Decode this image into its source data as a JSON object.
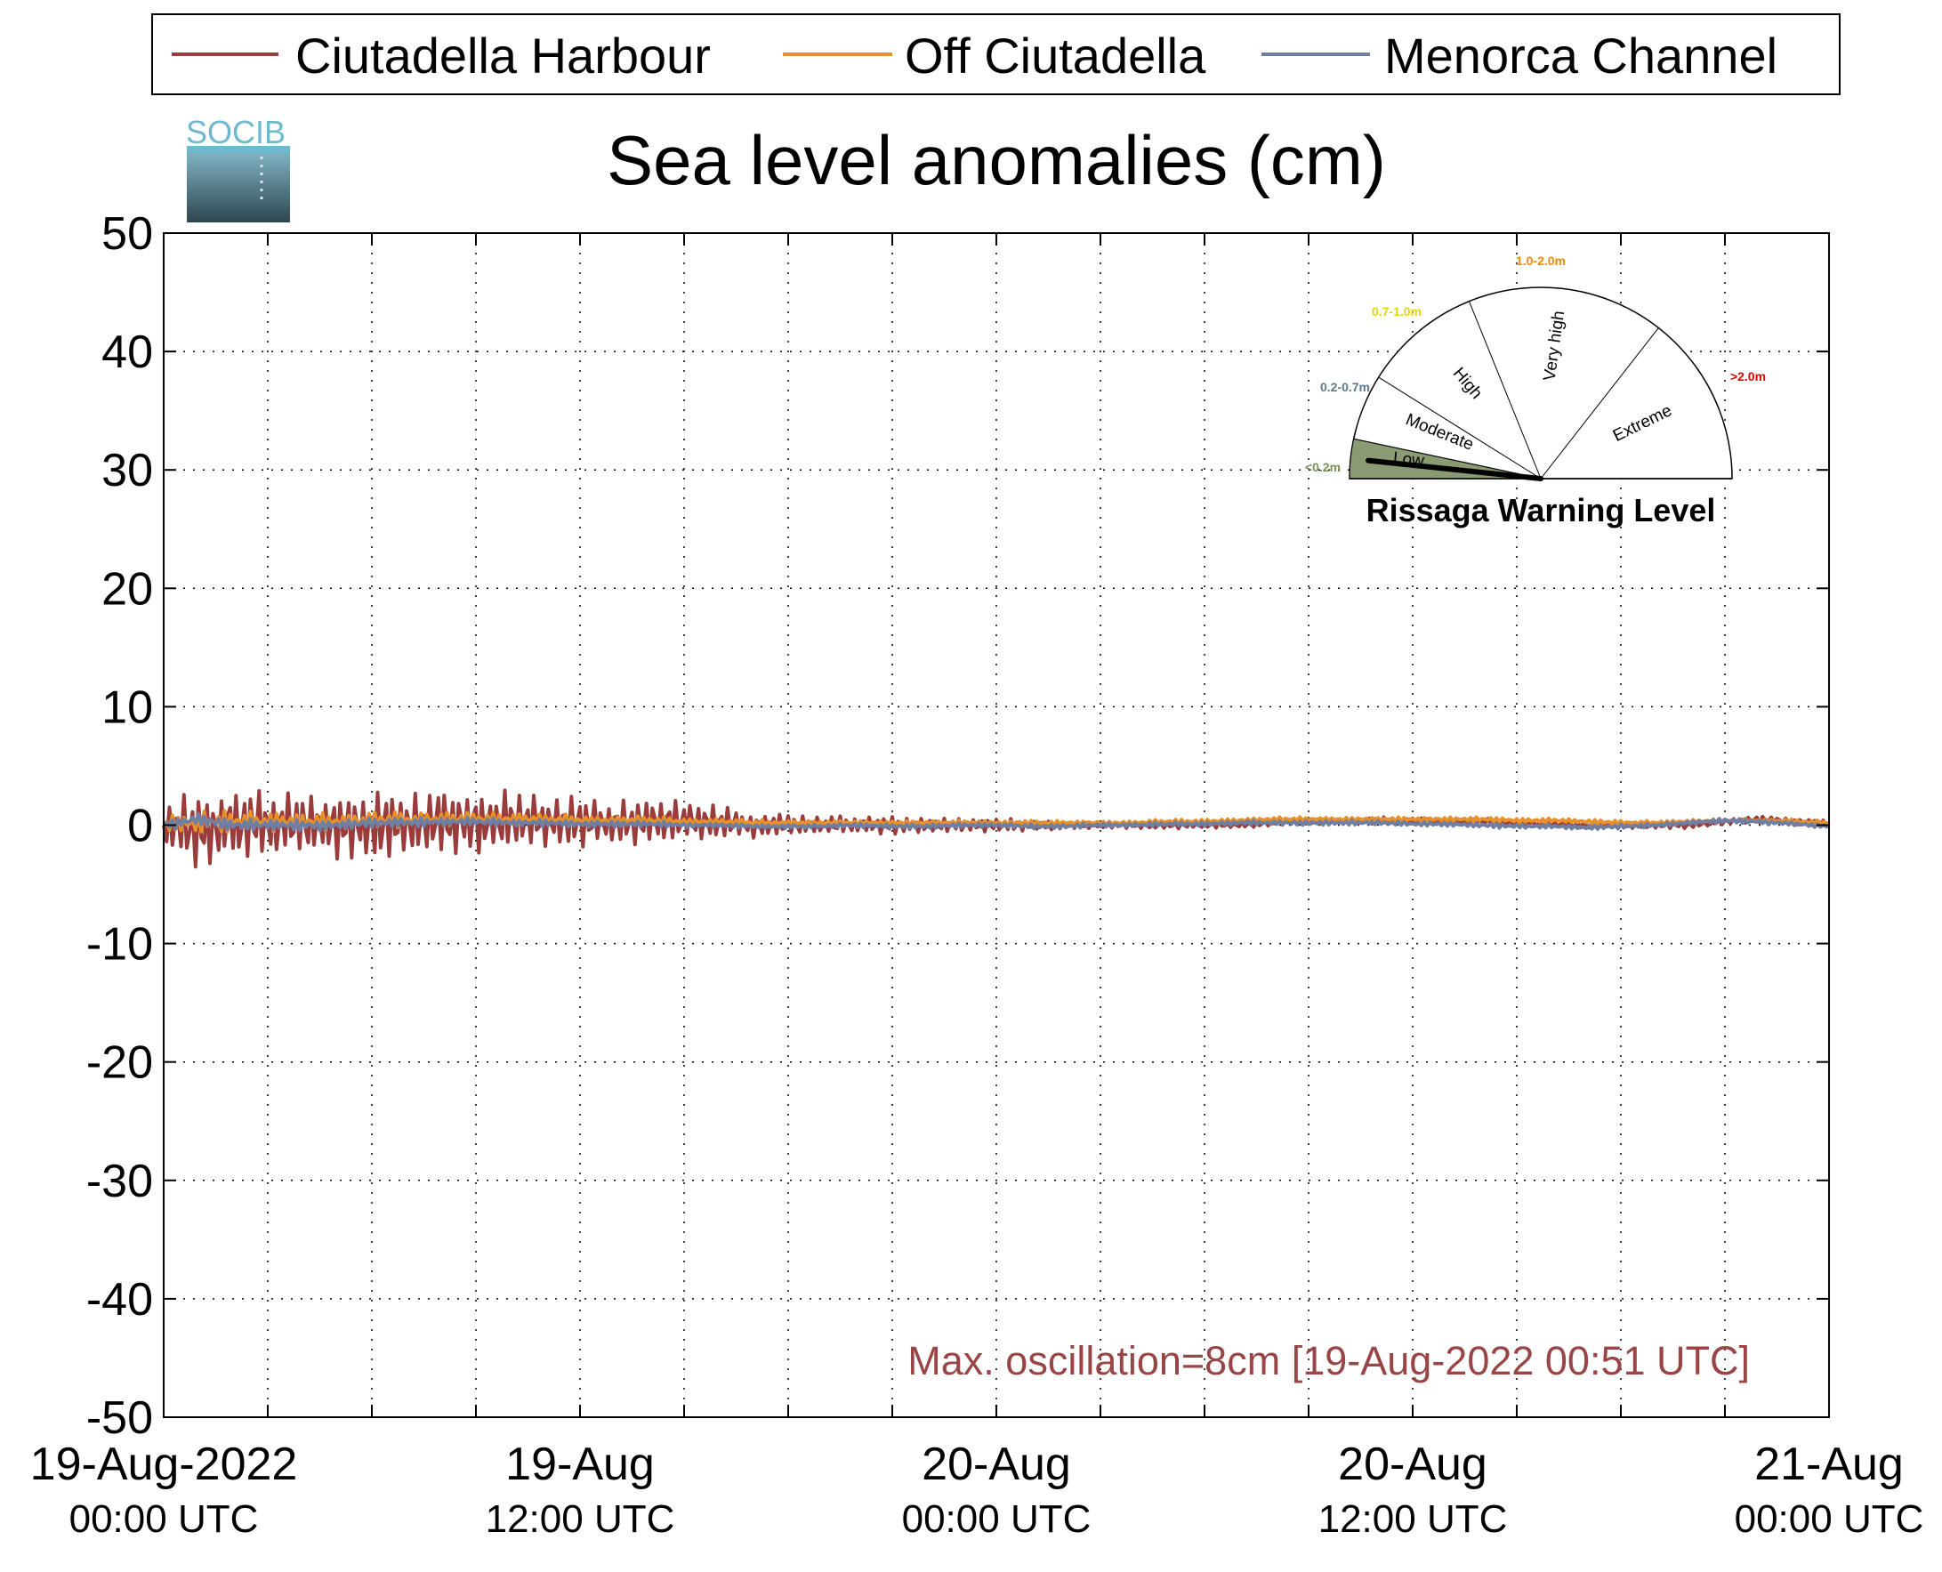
{
  "colors": {
    "ciutadella_harbour": "#9a3c3c",
    "off_ciutadella": "#e8902a",
    "menorca_channel": "#6f7fa3",
    "annotation": "#9a4545",
    "low_fill": "#8a9a72",
    "lbl_low": "#7a8f5a",
    "lbl_moderate": "#5a7a8a",
    "lbl_high": "#e6d600",
    "lbl_very_high": "#f08a00",
    "lbl_extreme": "#e00000"
  },
  "logo": {
    "text": "SOCIB"
  },
  "chart_data": {
    "type": "line",
    "title": "Sea level anomalies (cm)",
    "xlabel": "",
    "ylabel": "",
    "ylim": [
      -50,
      50
    ],
    "yticks": [
      50,
      40,
      30,
      20,
      10,
      0,
      -10,
      -20,
      -30,
      -40,
      -50
    ],
    "xlim": [
      "2022-08-19 00:00",
      "2022-08-21 00:00"
    ],
    "xticks": [
      {
        "line1": "19-Aug-2022",
        "line2": "00:00 UTC"
      },
      {
        "line1": "19-Aug",
        "line2": "12:00 UTC"
      },
      {
        "line1": "20-Aug",
        "line2": "00:00 UTC"
      },
      {
        "line1": "20-Aug",
        "line2": "12:00 UTC"
      },
      {
        "line1": "21-Aug",
        "line2": "00:00 UTC"
      }
    ],
    "grid": true,
    "legend_position": "top",
    "x_hours": [
      0,
      1,
      2,
      3,
      4,
      5,
      6,
      7,
      8,
      9,
      10,
      11,
      12,
      13,
      14,
      15,
      16,
      17,
      18,
      19,
      20,
      21,
      22,
      23,
      24,
      25,
      26,
      27,
      28,
      29,
      30,
      31,
      32,
      33,
      34,
      35,
      36,
      37,
      38,
      39,
      40,
      41,
      42,
      43,
      44,
      45,
      46,
      47,
      48
    ],
    "series": [
      {
        "name": "Ciutadella Harbour",
        "color_key": "ciutadella_harbour",
        "amplitude_cm": [
          2.5,
          3.5,
          3.5,
          3,
          3,
          3,
          3,
          3,
          3,
          3,
          3,
          2.5,
          2.5,
          2,
          2,
          1.8,
          1.5,
          1.2,
          1,
          0.9,
          0.9,
          0.8,
          0.7,
          0.6,
          0.6,
          0.5,
          0.4,
          0.3,
          0.3,
          0.3,
          0.3,
          0.3,
          0.3,
          0.3,
          0.3,
          0.3,
          0.3,
          0.3,
          0.3,
          0.3,
          0.3,
          0.3,
          0.3,
          0.3,
          0.3,
          0.3,
          0.3,
          0.3,
          0.3
        ],
        "mean_cm": [
          0,
          -0.5,
          0,
          0,
          0,
          0,
          0,
          0,
          0.2,
          0.3,
          0.3,
          0.3,
          0.2,
          0.2,
          0.3,
          0.3,
          0.2,
          0,
          0,
          0,
          0,
          0,
          0,
          0,
          0,
          0,
          0,
          0,
          0,
          0,
          0,
          0,
          0.2,
          0.3,
          0.3,
          0.4,
          0.4,
          0.3,
          0.3,
          0.2,
          0.1,
          0,
          0,
          0,
          0,
          0.3,
          0.5,
          0.3,
          0.1
        ]
      },
      {
        "name": "Off Ciutadella",
        "color_key": "off_ciutadella",
        "amplitude_cm": [
          0.8,
          1,
          1,
          0.9,
          0.9,
          0.8,
          0.8,
          0.7,
          0.7,
          0.6,
          0.6,
          0.5,
          0.5,
          0.4,
          0.4,
          0.3,
          0.3,
          0.3,
          0.2,
          0.2,
          0.2,
          0.2,
          0.2,
          0.2,
          0.2,
          0.2,
          0.2,
          0.2,
          0.2,
          0.2,
          0.2,
          0.2,
          0.2,
          0.2,
          0.2,
          0.2,
          0.2,
          0.2,
          0.2,
          0.2,
          0.2,
          0.2,
          0.2,
          0.2,
          0.2,
          0.2,
          0.2,
          0.2,
          0.2
        ],
        "mean_cm": [
          0,
          0.3,
          0.3,
          0.3,
          0.3,
          0.3,
          0.4,
          0.4,
          0.5,
          0.5,
          0.5,
          0.5,
          0.4,
          0.4,
          0.4,
          0.3,
          0.3,
          0.2,
          0.2,
          0.2,
          0.2,
          0.2,
          0.2,
          0.2,
          0.2,
          0.2,
          0.2,
          0.2,
          0.2,
          0.3,
          0.3,
          0.4,
          0.5,
          0.5,
          0.5,
          0.5,
          0.5,
          0.5,
          0.5,
          0.4,
          0.4,
          0.3,
          0.2,
          0.2,
          0.3,
          0.4,
          0.4,
          0.3,
          0.2
        ]
      },
      {
        "name": "Menorca Channel",
        "color_key": "menorca_channel",
        "amplitude_cm": [
          0.5,
          0.6,
          0.6,
          0.5,
          0.5,
          0.5,
          0.5,
          0.4,
          0.4,
          0.4,
          0.3,
          0.3,
          0.3,
          0.3,
          0.3,
          0.2,
          0.2,
          0.2,
          0.2,
          0.2,
          0.2,
          0.2,
          0.2,
          0.2,
          0.2,
          0.2,
          0.2,
          0.2,
          0.2,
          0.2,
          0.2,
          0.2,
          0.2,
          0.2,
          0.2,
          0.2,
          0.2,
          0.2,
          0.2,
          0.2,
          0.2,
          0.2,
          0.2,
          0.2,
          0.2,
          0.2,
          0.2,
          0.2,
          0.2
        ],
        "mean_cm": [
          0,
          0.5,
          0,
          0,
          0,
          0,
          0.2,
          0.2,
          0.3,
          0.3,
          0.2,
          0.2,
          0.1,
          0.1,
          0.1,
          0,
          0,
          -0.1,
          -0.1,
          -0.1,
          0,
          -0.1,
          -0.1,
          0,
          0,
          -0.1,
          -0.1,
          0,
          0,
          0.1,
          0.1,
          0.2,
          0.2,
          0.2,
          0.2,
          0.2,
          0.1,
          0.1,
          0,
          -0.1,
          -0.1,
          -0.2,
          -0.1,
          0,
          0.2,
          0.4,
          0.3,
          0.1,
          -0.1
        ]
      }
    ],
    "annotation": "Max. oscillation=8cm [19-Aug-2022 00:51 UTC]",
    "gauge": {
      "title": "Rissaga Warning Level",
      "current_level": "Low",
      "sectors": [
        {
          "name": "Low",
          "range": "<0.2m",
          "color_key": "lbl_low"
        },
        {
          "name": "Moderate",
          "range": "0.2-0.7m",
          "color_key": "lbl_moderate"
        },
        {
          "name": "High",
          "range": "0.7-1.0m",
          "color_key": "lbl_high"
        },
        {
          "name": "Very high",
          "range": "1.0-2.0m",
          "color_key": "lbl_very_high"
        },
        {
          "name": "Extreme",
          "range": ">2.0m",
          "color_key": "lbl_extreme"
        }
      ]
    }
  }
}
